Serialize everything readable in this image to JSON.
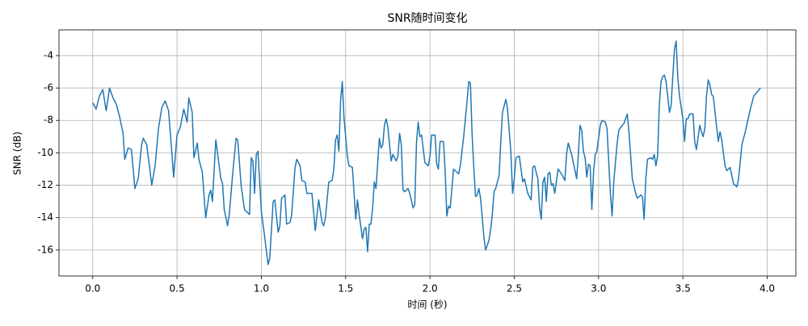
{
  "chart_data": {
    "type": "line",
    "title": "SNR随时间变化",
    "xlabel": "时间 (秒)",
    "ylabel": "SNR (dB)",
    "grid": true,
    "xlim": [
      -0.2,
      4.17
    ],
    "ylim": [
      -17.6,
      -2.41
    ],
    "xticks": [
      {
        "value": 0,
        "label": "0.0"
      },
      {
        "value": 0.5,
        "label": "0.5"
      },
      {
        "value": 1,
        "label": "1.0"
      },
      {
        "value": 1.5,
        "label": "1.5"
      },
      {
        "value": 2,
        "label": "2.0"
      },
      {
        "value": 2.5,
        "label": "2.5"
      },
      {
        "value": 3,
        "label": "3.0"
      },
      {
        "value": 3.5,
        "label": "3.5"
      },
      {
        "value": 4,
        "label": "4.0"
      }
    ],
    "yticks": [
      -16,
      -14,
      -12,
      -10,
      -8,
      -6,
      -4
    ],
    "x": [
      0.0,
      0.02,
      0.04,
      0.06,
      0.08,
      0.1,
      0.12,
      0.14,
      0.16,
      0.18,
      0.19,
      0.21,
      0.23,
      0.25,
      0.27,
      0.29,
      0.3,
      0.32,
      0.34,
      0.35,
      0.37,
      0.39,
      0.41,
      0.43,
      0.45,
      0.47,
      0.48,
      0.5,
      0.52,
      0.54,
      0.56,
      0.57,
      0.59,
      0.6,
      0.62,
      0.63,
      0.65,
      0.67,
      0.69,
      0.7,
      0.71,
      0.73,
      0.76,
      0.77,
      0.78,
      0.8,
      0.81,
      0.83,
      0.85,
      0.86,
      0.88,
      0.9,
      0.93,
      0.94,
      0.95,
      0.96,
      0.97,
      0.98,
      1.0,
      1.02,
      1.04,
      1.05,
      1.07,
      1.08,
      1.1,
      1.11,
      1.12,
      1.14,
      1.15,
      1.17,
      1.18,
      1.2,
      1.21,
      1.23,
      1.24,
      1.26,
      1.27,
      1.3,
      1.32,
      1.34,
      1.36,
      1.37,
      1.38,
      1.4,
      1.42,
      1.43,
      1.44,
      1.45,
      1.46,
      1.47,
      1.48,
      1.49,
      1.51,
      1.52,
      1.54,
      1.56,
      1.57,
      1.58,
      1.6,
      1.61,
      1.62,
      1.63,
      1.64,
      1.65,
      1.66,
      1.67,
      1.68,
      1.7,
      1.71,
      1.72,
      1.73,
      1.74,
      1.75,
      1.77,
      1.78,
      1.8,
      1.81,
      1.82,
      1.83,
      1.84,
      1.85,
      1.87,
      1.88,
      1.9,
      1.91,
      1.92,
      1.93,
      1.94,
      1.95,
      1.97,
      1.99,
      2.0,
      2.01,
      2.03,
      2.04,
      2.05,
      2.06,
      2.08,
      2.09,
      2.1,
      2.11,
      2.12,
      2.14,
      2.15,
      2.17,
      2.18,
      2.2,
      2.22,
      2.23,
      2.24,
      2.25,
      2.26,
      2.27,
      2.28,
      2.29,
      2.3,
      2.32,
      2.33,
      2.35,
      2.36,
      2.37,
      2.38,
      2.39,
      2.41,
      2.42,
      2.43,
      2.45,
      2.46,
      2.48,
      2.49,
      2.5,
      2.51,
      2.53,
      2.55,
      2.56,
      2.58,
      2.6,
      2.61,
      2.62,
      2.64,
      2.65,
      2.66,
      2.67,
      2.68,
      2.69,
      2.7,
      2.71,
      2.72,
      2.73,
      2.74,
      2.76,
      2.78,
      2.8,
      2.81,
      2.82,
      2.84,
      2.85,
      2.87,
      2.88,
      2.89,
      2.9,
      2.91,
      2.92,
      2.93,
      2.94,
      2.95,
      2.96,
      2.97,
      2.98,
      2.99,
      3.01,
      3.02,
      3.04,
      3.05,
      3.07,
      3.08,
      3.09,
      3.11,
      3.12,
      3.14,
      3.15,
      3.17,
      3.18,
      3.2,
      3.22,
      3.23,
      3.25,
      3.26,
      3.27,
      3.28,
      3.29,
      3.31,
      3.32,
      3.33,
      3.34,
      3.35,
      3.36,
      3.37,
      3.38,
      3.39,
      3.4,
      3.41,
      3.42,
      3.43,
      3.44,
      3.45,
      3.46,
      3.47,
      3.48,
      3.5,
      3.51,
      3.52,
      3.53,
      3.54,
      3.56,
      3.57,
      3.58,
      3.6,
      3.61,
      3.62,
      3.63,
      3.64,
      3.65,
      3.66,
      3.67,
      3.68,
      3.7,
      3.71,
      3.72,
      3.73,
      3.75,
      3.76,
      3.78,
      3.8,
      3.82,
      3.83,
      3.85,
      3.87,
      3.9,
      3.92,
      3.96
    ],
    "series": [
      {
        "name": "SNR",
        "color": "#1f77b4",
        "values": [
          -6.9,
          -7.3,
          -6.5,
          -6.1,
          -7.4,
          -6.0,
          -6.6,
          -7.0,
          -7.8,
          -8.8,
          -10.4,
          -9.7,
          -9.8,
          -12.2,
          -11.6,
          -9.5,
          -9.1,
          -9.5,
          -11.1,
          -12.0,
          -10.8,
          -8.5,
          -7.2,
          -6.8,
          -7.4,
          -10.1,
          -11.5,
          -8.9,
          -8.4,
          -7.3,
          -8.1,
          -6.6,
          -7.5,
          -10.3,
          -9.4,
          -10.4,
          -11.2,
          -14.0,
          -12.6,
          -12.3,
          -13.0,
          -9.2,
          -11.6,
          -11.9,
          -13.5,
          -14.5,
          -13.8,
          -11.3,
          -9.1,
          -9.2,
          -12.0,
          -13.5,
          -13.8,
          -10.3,
          -10.5,
          -12.5,
          -10.1,
          -9.9,
          -13.6,
          -15.2,
          -16.9,
          -16.5,
          -13.0,
          -12.9,
          -14.9,
          -14.5,
          -12.8,
          -12.6,
          -14.4,
          -14.3,
          -13.8,
          -10.9,
          -10.4,
          -10.8,
          -11.7,
          -11.8,
          -12.5,
          -12.5,
          -14.8,
          -12.9,
          -14.3,
          -14.5,
          -14.0,
          -11.8,
          -11.7,
          -11.0,
          -9.2,
          -8.9,
          -9.9,
          -6.8,
          -5.6,
          -7.8,
          -10.2,
          -10.8,
          -10.9,
          -14.1,
          -12.9,
          -13.8,
          -15.3,
          -14.7,
          -14.6,
          -16.1,
          -14.4,
          -14.4,
          -13.4,
          -11.8,
          -12.2,
          -9.1,
          -9.7,
          -9.5,
          -8.3,
          -7.9,
          -8.4,
          -10.5,
          -10.1,
          -10.5,
          -10.2,
          -8.8,
          -9.5,
          -12.3,
          -12.4,
          -12.2,
          -12.5,
          -13.4,
          -13.2,
          -9.4,
          -8.1,
          -9.0,
          -8.9,
          -10.6,
          -10.8,
          -10.2,
          -8.9,
          -8.9,
          -10.7,
          -11.0,
          -9.3,
          -9.3,
          -11.1,
          -13.9,
          -13.3,
          -13.4,
          -11.0,
          -11.1,
          -11.3,
          -10.8,
          -9.0,
          -6.8,
          -5.6,
          -5.7,
          -8.9,
          -10.9,
          -12.7,
          -12.6,
          -12.2,
          -12.8,
          -15.2,
          -16.0,
          -15.4,
          -14.7,
          -13.8,
          -12.4,
          -12.2,
          -11.4,
          -9.3,
          -7.5,
          -6.7,
          -7.3,
          -10.0,
          -12.5,
          -11.6,
          -10.3,
          -10.2,
          -11.8,
          -11.6,
          -12.5,
          -12.9,
          -10.9,
          -10.8,
          -11.6,
          -13.4,
          -14.1,
          -11.8,
          -11.5,
          -13.0,
          -11.3,
          -11.2,
          -12.0,
          -11.9,
          -12.5,
          -11.0,
          -11.3,
          -11.7,
          -10.1,
          -9.4,
          -10.1,
          -10.6,
          -11.6,
          -10.1,
          -8.3,
          -8.6,
          -9.9,
          -10.3,
          -11.5,
          -10.7,
          -10.8,
          -13.5,
          -11.2,
          -10.1,
          -9.9,
          -8.3,
          -8.0,
          -8.1,
          -8.5,
          -12.5,
          -13.9,
          -11.8,
          -9.4,
          -8.6,
          -8.3,
          -8.2,
          -7.6,
          -8.7,
          -11.6,
          -12.5,
          -12.8,
          -12.6,
          -12.7,
          -14.1,
          -11.6,
          -10.4,
          -10.3,
          -10.4,
          -10.1,
          -10.8,
          -10.2,
          -7.1,
          -5.6,
          -5.3,
          -5.2,
          -5.6,
          -6.5,
          -7.5,
          -7.1,
          -5.3,
          -3.6,
          -3.1,
          -5.4,
          -6.5,
          -7.9,
          -9.3,
          -7.9,
          -7.9,
          -7.6,
          -7.6,
          -9.3,
          -9.8,
          -8.3,
          -8.7,
          -9.0,
          -8.5,
          -6.5,
          -5.5,
          -5.8,
          -6.4,
          -6.5,
          -8.4,
          -9.3,
          -8.7,
          -9.2,
          -10.8,
          -11.1,
          -10.9,
          -11.9,
          -12.1,
          -11.6,
          -9.5,
          -8.7,
          -7.3,
          -6.5,
          -6.0
        ]
      }
    ]
  }
}
